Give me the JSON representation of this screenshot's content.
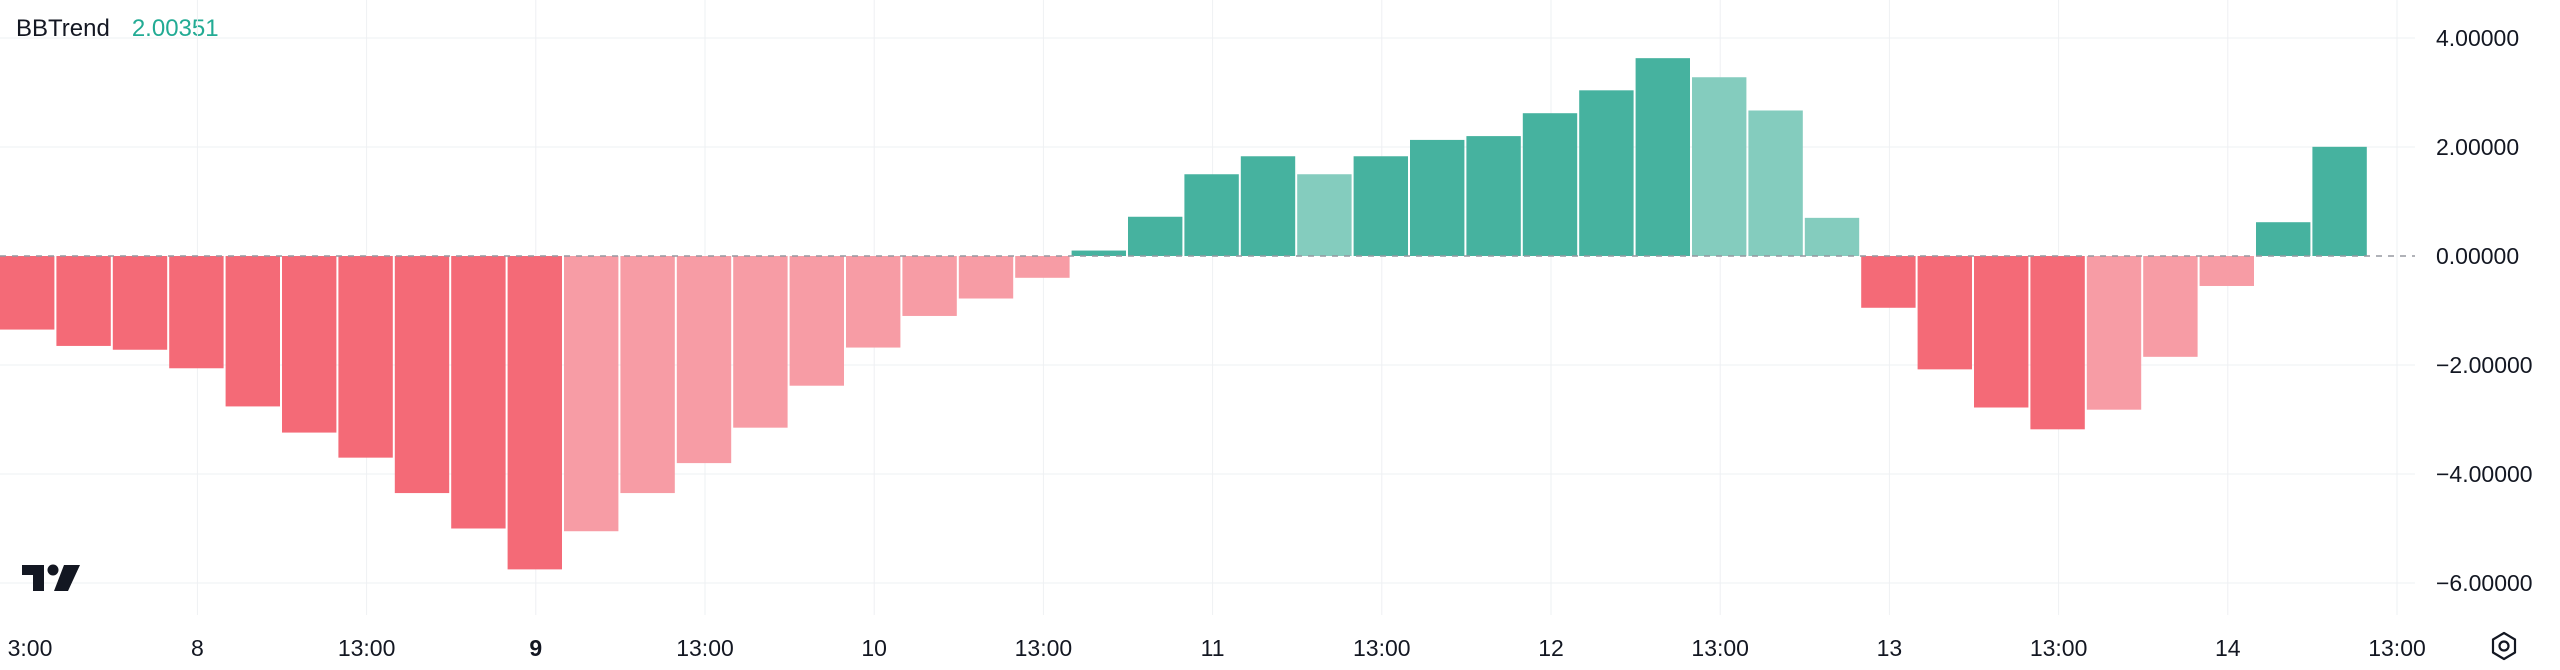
{
  "legend": {
    "name": "BBTrend",
    "value": "2.00351"
  },
  "icons": {
    "logo": "tradingview-logo-icon",
    "settings": "settings-gear-icon"
  },
  "colors": {
    "positive_strong": "#46b29f",
    "positive_weak": "#84ccbe",
    "negative_strong": "#f46a77",
    "negative_weak": "#f79ca5",
    "legend_value": "#22ab94",
    "grid": "#eef0f3",
    "zero_line": "#9598a1"
  },
  "chart_data": {
    "type": "bar",
    "title": "BBTrend",
    "ylim": [
      -6.6,
      4.6
    ],
    "yticks": [
      4,
      2,
      0,
      -2,
      -4,
      -6
    ],
    "ytick_labels": [
      "4.00000",
      "2.00000",
      "0.00000",
      "−2.00000",
      "−4.00000",
      "−6.00000"
    ],
    "xtick_labels": [
      {
        "label": "3:00",
        "bar": -0.5,
        "bold": false
      },
      {
        "label": "8",
        "bar": 3,
        "bold": false
      },
      {
        "label": "13:00",
        "bar": 6,
        "bold": false
      },
      {
        "label": "9",
        "bar": 9,
        "bold": true
      },
      {
        "label": "13:00",
        "bar": 12,
        "bold": false
      },
      {
        "label": "10",
        "bar": 15,
        "bold": false
      },
      {
        "label": "13:00",
        "bar": 18,
        "bold": false
      },
      {
        "label": "11",
        "bar": 21,
        "bold": false
      },
      {
        "label": "13:00",
        "bar": 24,
        "bold": false
      },
      {
        "label": "12",
        "bar": 27,
        "bold": false
      },
      {
        "label": "13:00",
        "bar": 30,
        "bold": false
      },
      {
        "label": "13",
        "bar": 33,
        "bold": false
      },
      {
        "label": "13:00",
        "bar": 36,
        "bold": false
      },
      {
        "label": "14",
        "bar": 39,
        "bold": false
      },
      {
        "label": "13:00",
        "bar": 42,
        "bold": false
      }
    ],
    "zero_line": true,
    "grid": true,
    "series": [
      {
        "values": [
          -1.35,
          -1.65,
          -1.72,
          -2.06,
          -2.76,
          -3.24,
          -3.7,
          -4.35,
          -5.0,
          -5.75,
          -5.05,
          -4.35,
          -3.8,
          -3.15,
          -2.38,
          -1.68,
          -1.1,
          -0.78,
          -0.4,
          0.1,
          0.72,
          1.5,
          1.83,
          1.5,
          1.83,
          2.13,
          2.2,
          2.62,
          3.04,
          3.63,
          3.28,
          2.67,
          0.7,
          -0.95,
          -2.08,
          -2.78,
          -3.18,
          -2.82,
          -1.85,
          -0.55,
          0.62,
          2.00351
        ],
        "shade": [
          "s",
          "s",
          "s",
          "s",
          "s",
          "s",
          "s",
          "s",
          "s",
          "s",
          "w",
          "w",
          "w",
          "w",
          "w",
          "w",
          "w",
          "w",
          "w",
          "s",
          "s",
          "s",
          "s",
          "w",
          "s",
          "s",
          "s",
          "s",
          "s",
          "s",
          "w",
          "w",
          "w",
          "s",
          "s",
          "s",
          "s",
          "w",
          "w",
          "w",
          "s",
          "s"
        ]
      }
    ]
  }
}
